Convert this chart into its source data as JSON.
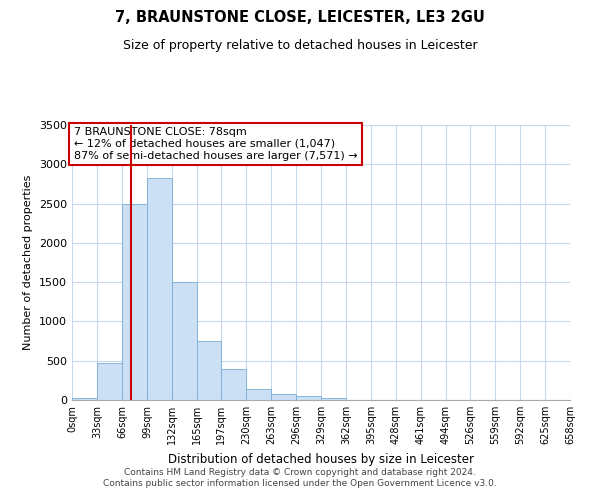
{
  "title": "7, BRAUNSTONE CLOSE, LEICESTER, LE3 2GU",
  "subtitle": "Size of property relative to detached houses in Leicester",
  "xlabel": "Distribution of detached houses by size in Leicester",
  "ylabel": "Number of detached properties",
  "bar_color": "#cce0f5",
  "bar_edge_color": "#7aadd4",
  "vline_x": 78,
  "vline_color": "#cc0000",
  "annotation_lines": [
    "7 BRAUNSTONE CLOSE: 78sqm",
    "← 12% of detached houses are smaller (1,047)",
    "87% of semi-detached houses are larger (7,571) →"
  ],
  "bin_edges": [
    0,
    33,
    66,
    99,
    132,
    165,
    197,
    230,
    263,
    296,
    329,
    362,
    395,
    428,
    461,
    494,
    526,
    559,
    592,
    625,
    658
  ],
  "bin_counts": [
    20,
    470,
    2500,
    2820,
    1500,
    750,
    390,
    145,
    75,
    50,
    30,
    0,
    0,
    0,
    0,
    0,
    0,
    0,
    0,
    0
  ],
  "ylim": [
    0,
    3500
  ],
  "yticks": [
    0,
    500,
    1000,
    1500,
    2000,
    2500,
    3000,
    3500
  ],
  "xtick_labels": [
    "0sqm",
    "33sqm",
    "66sqm",
    "99sqm",
    "132sqm",
    "165sqm",
    "197sqm",
    "230sqm",
    "263sqm",
    "296sqm",
    "329sqm",
    "362sqm",
    "395sqm",
    "428sqm",
    "461sqm",
    "494sqm",
    "526sqm",
    "559sqm",
    "592sqm",
    "625sqm",
    "658sqm"
  ],
  "footer_line1": "Contains HM Land Registry data © Crown copyright and database right 2024.",
  "footer_line2": "Contains public sector information licensed under the Open Government Licence v3.0.",
  "background_color": "#ffffff",
  "grid_color": "#c8d8ec",
  "annotation_box_edge": "#cc0000"
}
